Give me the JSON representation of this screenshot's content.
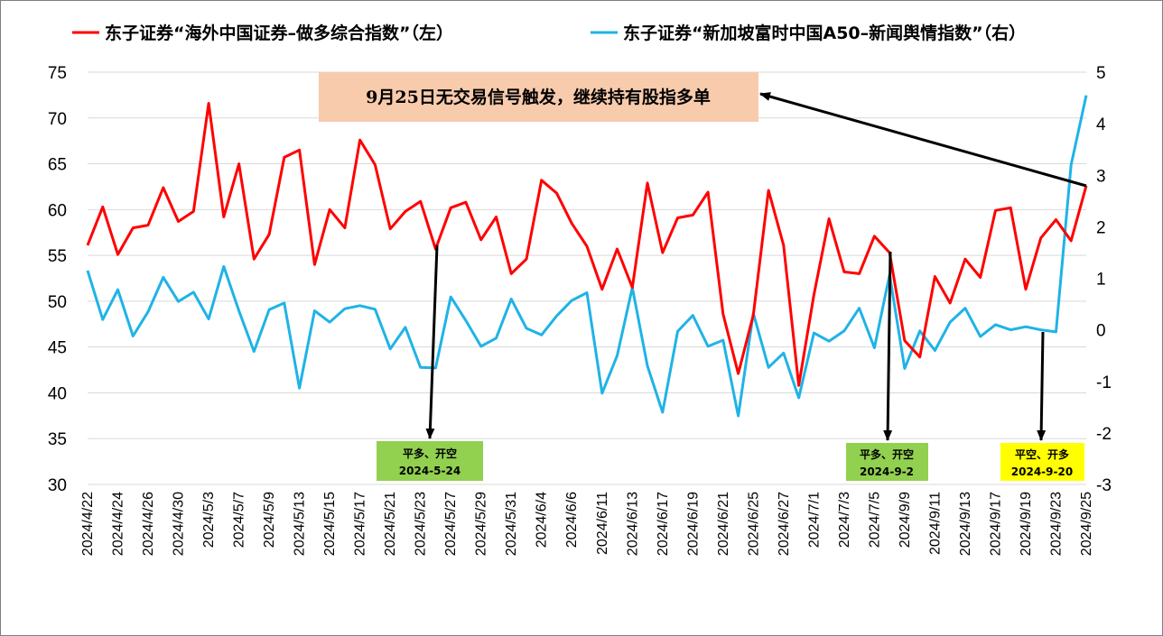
{
  "chart_data": {
    "type": "line",
    "legend": [
      {
        "label": "东子证券“海外中国证券–做多综合指数”（左）",
        "color": "#ff0000"
      },
      {
        "label": "东子证券“新加坡富时中国A50–新闻舆情指数”（右）",
        "color": "#1fb3e6"
      }
    ],
    "x": [
      "2024/4/22",
      "2024/4/23",
      "2024/4/24",
      "2024/4/25",
      "2024/4/26",
      "2024/4/29",
      "2024/4/30",
      "2024/5/2",
      "2024/5/3",
      "2024/5/6",
      "2024/5/7",
      "2024/5/8",
      "2024/5/9",
      "2024/5/10",
      "2024/5/13",
      "2024/5/14",
      "2024/5/15",
      "2024/5/16",
      "2024/5/17",
      "2024/5/20",
      "2024/5/21",
      "2024/5/22",
      "2024/5/23",
      "2024/5/24",
      "2024/5/27",
      "2024/5/28",
      "2024/5/29",
      "2024/5/30",
      "2024/5/31",
      "2024/6/3",
      "2024/6/4",
      "2024/6/5",
      "2024/6/6",
      "2024/6/7",
      "2024/6/11",
      "2024/6/12",
      "2024/6/13",
      "2024/6/14",
      "2024/6/17",
      "2024/6/18",
      "2024/6/19",
      "2024/6/20",
      "2024/6/21",
      "2024/6/24",
      "2024/6/25",
      "2024/6/26",
      "2024/6/27",
      "2024/6/28",
      "2024/7/1",
      "2024/7/2",
      "2024/7/3",
      "2024/7/4",
      "2024/7/5",
      "2024/7/8",
      "2024/9/9",
      "2024/9/10",
      "2024/9/11",
      "2024/9/12",
      "2024/9/13",
      "2024/9/16",
      "2024/9/17",
      "2024/9/18",
      "2024/9/19",
      "2024/9/20",
      "2024/9/23",
      "2024/9/24",
      "2024/9/25"
    ],
    "xtick_labels": [
      "2024/4/22",
      "2024/4/24",
      "2024/4/26",
      "2024/4/30",
      "2024/5/3",
      "2024/5/7",
      "2024/5/9",
      "2024/5/13",
      "2024/5/15",
      "2024/5/17",
      "2024/5/21",
      "2024/5/23",
      "2024/5/27",
      "2024/5/29",
      "2024/5/31",
      "2024/6/4",
      "2024/6/6",
      "2024/6/11",
      "2024/6/13",
      "2024/6/17",
      "2024/6/19",
      "2024/6/21",
      "2024/6/25",
      "2024/6/27",
      "2024/7/1",
      "2024/7/3",
      "2024/7/5",
      "2024/9/9",
      "2024/9/11",
      "2024/9/13",
      "2024/9/17",
      "2024/9/19",
      "2024/9/23",
      "2024/9/25"
    ],
    "series": [
      {
        "name": "东子证券“海外中国证券–做多综合指数”（左）",
        "axis": "left",
        "color": "#ff0000",
        "values": [
          56.1,
          60.3,
          55.1,
          58.0,
          58.3,
          62.4,
          58.7,
          59.8,
          71.6,
          59.2,
          65.0,
          54.6,
          57.3,
          65.7,
          66.5,
          54.0,
          60.0,
          58.0,
          67.6,
          64.9,
          57.9,
          59.8,
          60.9,
          55.7,
          60.2,
          60.8,
          56.7,
          59.2,
          53.0,
          54.6,
          63.2,
          61.8,
          58.5,
          56.0,
          51.3,
          55.7,
          51.5,
          62.9,
          55.3,
          59.1,
          59.4,
          61.9,
          48.6,
          42.1,
          48.5,
          62.1,
          56.1,
          40.8,
          50.7,
          59.0,
          53.2,
          53.0,
          57.1,
          55.3,
          45.7,
          43.9,
          52.7,
          49.8,
          54.6,
          52.6,
          59.9,
          60.2,
          51.3,
          56.9,
          58.9,
          56.6,
          62.6
        ]
      },
      {
        "name": "东子证券“新加坡富时中国A50–新闻舆情指数”（右）",
        "axis": "right",
        "color": "#1fb3e6",
        "values": [
          1.15,
          0.2,
          0.78,
          -0.12,
          0.35,
          1.02,
          0.55,
          0.73,
          0.21,
          1.23,
          0.37,
          -0.42,
          0.39,
          0.52,
          -1.13,
          0.37,
          0.15,
          0.41,
          0.47,
          0.4,
          -0.37,
          0.05,
          -0.73,
          -0.74,
          0.64,
          0.18,
          -0.32,
          -0.16,
          0.6,
          0.03,
          -0.1,
          0.27,
          0.57,
          0.72,
          -1.23,
          -0.5,
          0.82,
          -0.7,
          -1.6,
          -0.03,
          0.28,
          -0.32,
          -0.2,
          -1.67,
          0.32,
          -0.73,
          -0.45,
          -1.32,
          -0.06,
          -0.22,
          -0.02,
          0.42,
          -0.35,
          1.07,
          -0.75,
          -0.02,
          -0.4,
          0.15,
          0.42,
          -0.13,
          0.1,
          0.0,
          0.06,
          0.0,
          -0.04,
          3.2,
          4.55
        ]
      }
    ],
    "y_left": {
      "min": 30,
      "max": 75,
      "step": 5
    },
    "y_right": {
      "min": -3,
      "max": 5,
      "step": 1
    },
    "grid": true,
    "legend_position": "top",
    "annotations": {
      "callout": {
        "text": "9月25日无交易信号触发，继续持有股指多单",
        "bg": "#f8cbad",
        "arrow_to": "2024/9/25"
      },
      "badges": [
        {
          "line1": "平多、开空",
          "line2": "2024-5-24",
          "bg": "#92d050",
          "arrow_from": "2024/5/24"
        },
        {
          "line1": "平多、开空",
          "line2": "2024-9-2",
          "bg": "#92d050",
          "arrow_from": "2024/7/8"
        },
        {
          "line1": "平空、开多",
          "line2": "2024-9-20",
          "bg": "#ffff00",
          "arrow_from": "2024/9/20"
        }
      ]
    }
  }
}
